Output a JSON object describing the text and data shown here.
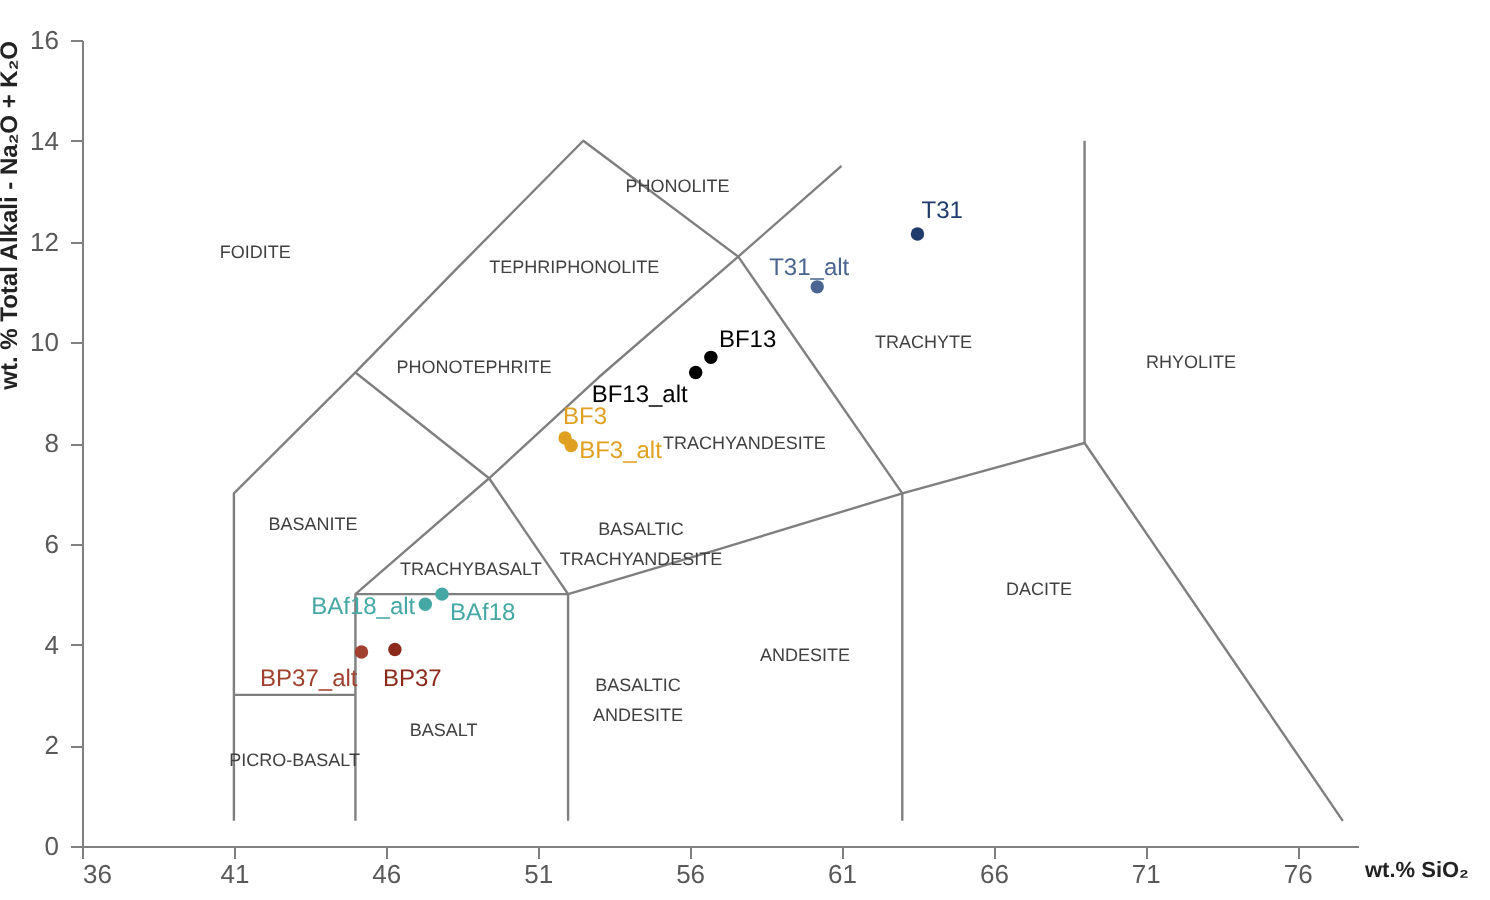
{
  "chart_data": {
    "type": "scatter",
    "xlabel": "wt.% SiO₂",
    "ylabel": "wt. % Total Alkali - Na₂O + K₂O",
    "xlim": [
      36,
      78
    ],
    "xticks": [
      36,
      41,
      46,
      51,
      56,
      61,
      66,
      71,
      76
    ],
    "ylim": [
      0,
      16
    ],
    "yticks": [
      0,
      2,
      4,
      6,
      8,
      10,
      12,
      14,
      16
    ],
    "grid": false,
    "marker": "circle",
    "series": [
      {
        "type": "line",
        "marker": "none",
        "color": "#7f7f7f",
        "x": [
          41,
          41,
          45,
          48.4,
          52.5,
          57.6,
          63,
          63
        ],
        "values": [
          0.5,
          7,
          9.4,
          11.5,
          14,
          11.7,
          7,
          0.5
        ]
      },
      {
        "type": "line",
        "marker": "none",
        "color": "#7f7f7f",
        "x": [
          41,
          45
        ],
        "values": [
          3,
          3
        ]
      },
      {
        "type": "line",
        "marker": "none",
        "color": "#7f7f7f",
        "x": [
          45,
          45,
          49.4,
          53,
          57.6,
          61
        ],
        "values": [
          0.5,
          5,
          7.3,
          9.3,
          11.7,
          13.5
        ]
      },
      {
        "type": "line",
        "marker": "none",
        "color": "#7f7f7f",
        "x": [
          45,
          49.4,
          52,
          52
        ],
        "values": [
          9.4,
          7.3,
          5,
          0.5
        ]
      },
      {
        "type": "line",
        "marker": "none",
        "color": "#7f7f7f",
        "x": [
          45,
          52,
          57,
          63,
          69,
          77.5
        ],
        "values": [
          5,
          5,
          5.9,
          7,
          8,
          0.5
        ]
      },
      {
        "type": "line",
        "marker": "none",
        "color": "#7f7f7f",
        "x": [
          69,
          69
        ],
        "values": [
          8,
          14
        ]
      },
      {
        "name": "BF13",
        "color": "#000000",
        "x": [
          56.7
        ],
        "values": [
          9.7
        ]
      },
      {
        "name": "BF13_alt",
        "color": "#000000",
        "x": [
          56.2
        ],
        "values": [
          9.4
        ]
      },
      {
        "name": "BF3",
        "color": "#e0a020",
        "x": [
          51.9
        ],
        "values": [
          8.1
        ]
      },
      {
        "name": "BF3_alt",
        "color": "#e0a020",
        "x": [
          52.1
        ],
        "values": [
          7.95
        ]
      },
      {
        "name": "T31",
        "color": "#1f3b6b",
        "x": [
          63.5
        ],
        "values": [
          12.15
        ]
      },
      {
        "name": "T31_alt",
        "color": "#4a6590",
        "x": [
          60.2
        ],
        "values": [
          11.1
        ]
      },
      {
        "name": "BAf18",
        "color": "#45a8a5",
        "x": [
          47.85
        ],
        "values": [
          5.0
        ]
      },
      {
        "name": "BAf18_alt",
        "color": "#45a8a5",
        "x": [
          47.3
        ],
        "values": [
          4.8
        ]
      },
      {
        "name": "BP37",
        "color": "#8b2a1a",
        "x": [
          46.3
        ],
        "values": [
          3.9
        ]
      },
      {
        "name": "BP37_alt",
        "color": "#a0402e",
        "x": [
          45.2
        ],
        "values": [
          3.85
        ]
      }
    ],
    "annotations": [
      "FOIDITE",
      "PHONOLITE",
      "TEPHRIPHONOLITE",
      "PHONOTEPHRITE",
      "TRACHYTE",
      "RHYOLITE",
      "TRACHYANDESITE",
      "BASALTIC TRACHYANDESITE",
      "BASANITE",
      "TRACHYBASALT",
      "BASALT",
      "PICRO-BASALT",
      "BASALTIC ANDESITE",
      "ANDESITE",
      "DACITE"
    ]
  }
}
